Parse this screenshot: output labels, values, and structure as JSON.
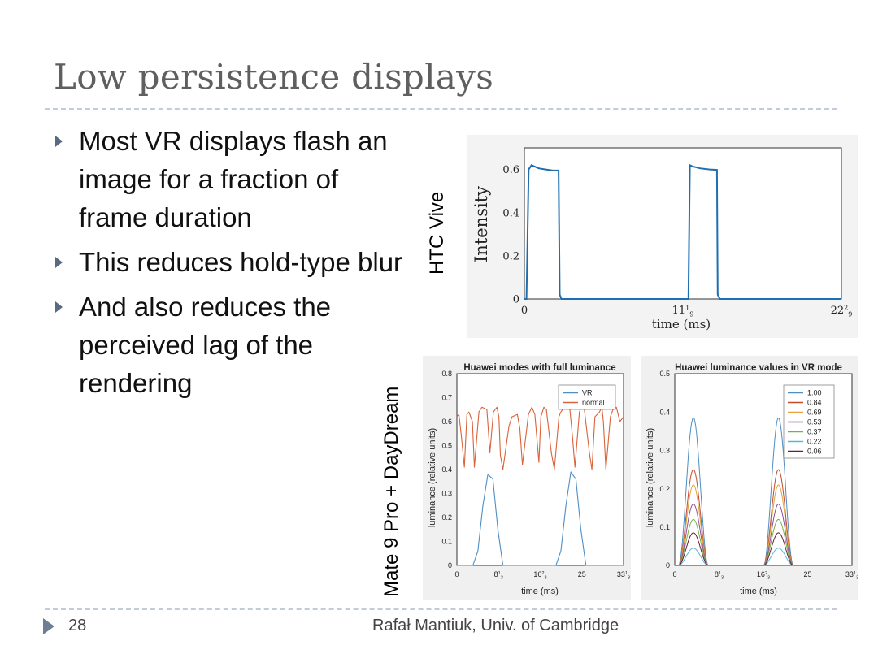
{
  "slide": {
    "title": "Low persistence displays",
    "bullets": [
      "Most VR displays flash an image for a fraction of frame duration",
      "This reduces hold-type blur",
      "And also reduces the perceived lag of the rendering"
    ],
    "labels": {
      "htc": "HTC Vive",
      "mate": "Mate 9 Pro + DayDream"
    },
    "footer": {
      "page": "28",
      "credit": "Rafał Mantiuk, Univ. of Cambridge"
    }
  },
  "chart_data": [
    {
      "type": "line",
      "title": "",
      "xlabel": "time (ms)",
      "ylabel": "Intensity",
      "xlim": [
        0,
        22.22
      ],
      "ylim": [
        0,
        0.7
      ],
      "xticks": [
        0,
        11.11,
        22.22
      ],
      "xtick_labels": [
        {
          "int": "0",
          "num": "",
          "den": ""
        },
        {
          "int": "11",
          "num": "1",
          "den": "9"
        },
        {
          "int": "22",
          "num": "2",
          "den": "9"
        }
      ],
      "yticks": [
        0,
        0.2,
        0.4,
        0.6
      ],
      "ytick_labels": [
        "0",
        "0.2",
        "0.4",
        "0.6"
      ],
      "grid": true,
      "colors": {
        "line": "#1f6fb0"
      },
      "series": [
        {
          "name": "",
          "x": [
            0,
            0.15,
            0.3,
            0.5,
            1.0,
            1.5,
            2.0,
            2.4,
            2.48,
            2.6,
            11.1,
            11.5,
            11.6,
            11.75,
            12.3,
            13.0,
            13.5,
            13.55,
            13.7,
            22.22
          ],
          "y": [
            0,
            0,
            0.6,
            0.62,
            0.605,
            0.6,
            0.595,
            0.595,
            0.02,
            0,
            0,
            0,
            0.62,
            0.615,
            0.605,
            0.6,
            0.598,
            0.02,
            0,
            0
          ]
        }
      ]
    },
    {
      "type": "line",
      "title": "Huawei modes with full luminance",
      "xlabel": "time (ms)",
      "ylabel": "luminance (relative units)",
      "xlim": [
        0,
        33.33
      ],
      "ylim": [
        0,
        0.8
      ],
      "xticks": [
        0,
        8.33,
        16.67,
        25,
        33.33
      ],
      "xtick_labels": [
        {
          "int": "0",
          "num": "",
          "den": ""
        },
        {
          "int": "8",
          "num": "1",
          "den": "3"
        },
        {
          "int": "16",
          "num": "2",
          "den": "3"
        },
        {
          "int": "25",
          "num": "",
          "den": ""
        },
        {
          "int": "33",
          "num": "1",
          "den": "3"
        }
      ],
      "yticks": [
        0,
        0.1,
        0.2,
        0.3,
        0.4,
        0.5,
        0.6,
        0.7,
        0.8
      ],
      "ytick_labels": [
        "0",
        "0.1",
        "0.2",
        "0.3",
        "0.4",
        "0.5",
        "0.6",
        "0.7",
        "0.8"
      ],
      "grid": true,
      "legend": "top-right",
      "series": [
        {
          "name": "VR",
          "color": "#4d8ec4",
          "x": [
            0,
            3.2,
            4.2,
            5.2,
            6.2,
            7.2,
            8.2,
            9.2,
            19.8,
            20.8,
            21.8,
            22.8,
            23.8,
            24.8,
            25.8,
            33.33
          ],
          "y": [
            0,
            0,
            0.06,
            0.25,
            0.38,
            0.36,
            0.15,
            0,
            0,
            0.06,
            0.25,
            0.39,
            0.36,
            0.15,
            0,
            0
          ]
        },
        {
          "name": "normal",
          "color": "#d9633a",
          "x": [
            0,
            0.4,
            0.9,
            1.5,
            2.0,
            2.4,
            3.1,
            3.5,
            4.4,
            5.0,
            6.0,
            6.6,
            7.3,
            8.0,
            8.4,
            8.7,
            9.2,
            10.4,
            11.0,
            12.1,
            12.6,
            13.1,
            14.3,
            15.0,
            15.6,
            16.4,
            16.8,
            17.4,
            17.9,
            18.9,
            19.5,
            20.4,
            20.8,
            21.5,
            22.6,
            23.1,
            23.6,
            24.5,
            24.9,
            25.5,
            26.5,
            27.0,
            27.6,
            28.5,
            29.0,
            29.3,
            29.8,
            30.7,
            31.2,
            31.9,
            32.6,
            33.33
          ],
          "y": [
            0.62,
            0.63,
            0.54,
            0.41,
            0.63,
            0.64,
            0.6,
            0.41,
            0.64,
            0.66,
            0.65,
            0.47,
            0.64,
            0.66,
            0.62,
            0.46,
            0.4,
            0.58,
            0.62,
            0.63,
            0.57,
            0.42,
            0.63,
            0.66,
            0.63,
            0.43,
            0.62,
            0.66,
            0.65,
            0.47,
            0.4,
            0.62,
            0.64,
            0.66,
            0.65,
            0.54,
            0.41,
            0.64,
            0.66,
            0.65,
            0.47,
            0.4,
            0.62,
            0.64,
            0.66,
            0.6,
            0.4,
            0.62,
            0.65,
            0.66,
            0.6,
            0.62
          ]
        }
      ]
    },
    {
      "type": "line",
      "title": "Huawei luminance values in VR mode",
      "xlabel": "time (ms)",
      "ylabel": "luminance (relative units)",
      "xlim": [
        0,
        33.33
      ],
      "ylim": [
        0,
        0.5
      ],
      "xticks": [
        0,
        8.33,
        16.67,
        25,
        33.33
      ],
      "xtick_labels": [
        {
          "int": "0",
          "num": "",
          "den": ""
        },
        {
          "int": "8",
          "num": "1",
          "den": "3"
        },
        {
          "int": "16",
          "num": "2",
          "den": "3"
        },
        {
          "int": "25",
          "num": "",
          "den": ""
        },
        {
          "int": "33",
          "num": "1",
          "den": "3"
        }
      ],
      "yticks": [
        0,
        0.1,
        0.2,
        0.3,
        0.4,
        0.5
      ],
      "ytick_labels": [
        "0",
        "0.1",
        "0.2",
        "0.3",
        "0.4",
        "0.5"
      ],
      "grid": true,
      "legend": "top-right",
      "series": [
        {
          "name": "1.00",
          "color": "#4d8ec4",
          "peak": 0.385
        },
        {
          "name": "0.84",
          "color": "#c44a2e",
          "peak": 0.25
        },
        {
          "name": "0.69",
          "color": "#e2a43b",
          "peak": 0.21
        },
        {
          "name": "0.53",
          "color": "#8b4f9c",
          "peak": 0.16
        },
        {
          "name": "0.37",
          "color": "#79b04a",
          "peak": 0.12
        },
        {
          "name": "0.22",
          "color": "#58b7d8",
          "peak": 0.045
        },
        {
          "name": "0.06",
          "color": "#6e1c33",
          "peak": 0.085
        }
      ],
      "pulses": {
        "centers": [
          3.5,
          19.5
        ],
        "half_width": 2.8
      }
    }
  ]
}
